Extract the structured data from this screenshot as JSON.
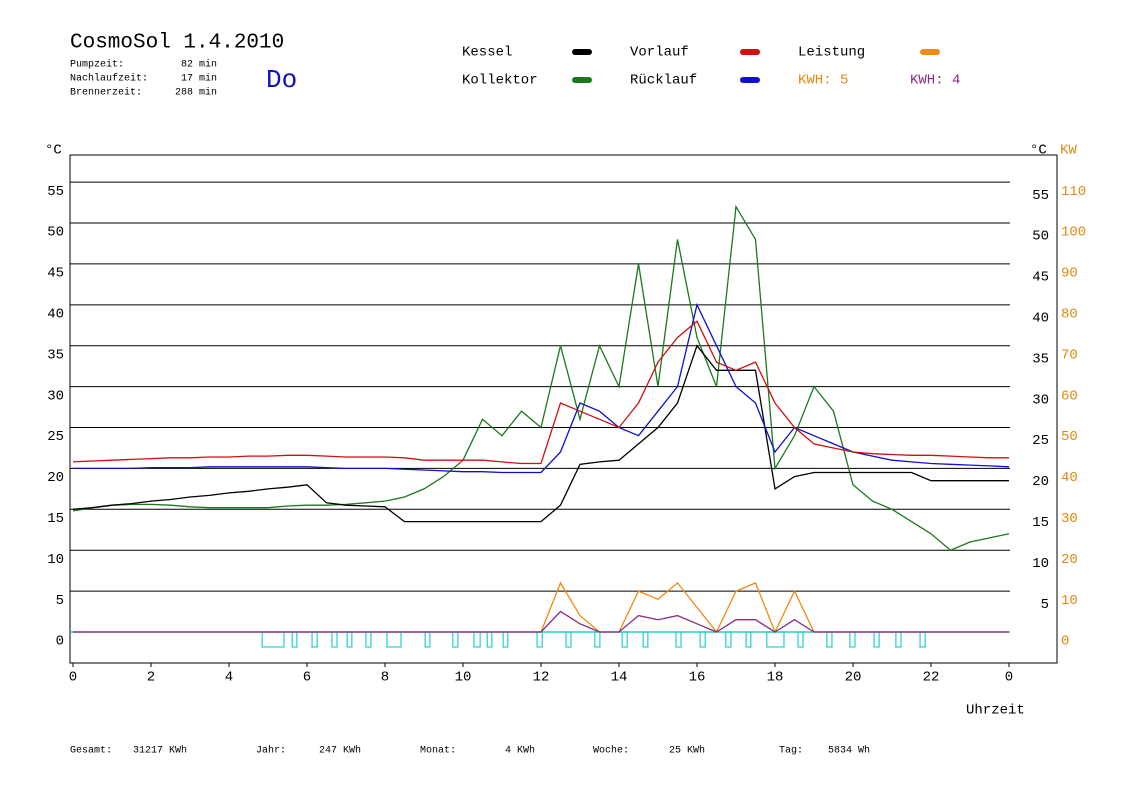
{
  "header": {
    "title": "CosmoSol 1.4.2010",
    "day": "Do",
    "stats": [
      {
        "label": "Pumpzeit:",
        "value": "82 min"
      },
      {
        "label": "Nachlaufzeit:",
        "value": "17 min"
      },
      {
        "label": "Brennerzeit:",
        "value": "288 min"
      }
    ],
    "legend_extra": [
      {
        "text": "KWH: 5",
        "color": "#e08a10"
      },
      {
        "text": "KWH: 4",
        "color": "#8a2a8a"
      }
    ]
  },
  "chart_data": {
    "type": "line",
    "y_unit_left": "°C",
    "y_unit_right": "°C",
    "y2_unit": "KW",
    "xlabel": "Uhrzeit",
    "x": [
      0,
      0.5,
      1,
      1.5,
      2,
      2.5,
      3,
      3.5,
      4,
      4.5,
      5,
      5.5,
      6,
      6.5,
      7,
      7.5,
      8,
      8.5,
      9,
      9.5,
      10,
      10.5,
      11,
      11.5,
      12,
      12.5,
      13,
      13.5,
      14,
      14.5,
      15,
      15.5,
      16,
      16.5,
      17,
      17.5,
      18,
      18.5,
      19,
      19.5,
      20,
      20.5,
      21,
      21.5,
      22,
      22.5,
      23,
      23.5,
      24
    ],
    "xlim": [
      0,
      24
    ],
    "xticks": [
      0,
      2,
      4,
      6,
      8,
      10,
      12,
      14,
      16,
      18,
      20,
      22,
      {
        "value": 24,
        "label": "0"
      }
    ],
    "ylim": [
      -4,
      58
    ],
    "yticks": [
      0,
      5,
      10,
      15,
      20,
      25,
      30,
      35,
      40,
      45,
      50,
      55
    ],
    "yticks_right": [
      5,
      10,
      15,
      20,
      25,
      30,
      35,
      40,
      45,
      50,
      55
    ],
    "y2lim": [
      -8,
      116
    ],
    "y2ticks": [
      0,
      10,
      20,
      30,
      40,
      50,
      60,
      70,
      80,
      90,
      100,
      110
    ],
    "grid": true,
    "series": [
      {
        "name": "Kessel",
        "color": "#000000",
        "values": [
          15,
          15.2,
          15.5,
          15.7,
          16,
          16.2,
          16.5,
          16.7,
          17,
          17.2,
          17.5,
          17.7,
          18,
          15.8,
          15.5,
          15.4,
          15.3,
          13.5,
          13.5,
          13.5,
          13.5,
          13.5,
          13.5,
          13.5,
          13.5,
          15.5,
          20.5,
          20.8,
          21,
          23,
          25,
          28,
          35,
          32,
          32,
          32,
          17.5,
          19,
          19.5,
          19.5,
          19.5,
          19.5,
          19.5,
          19.5,
          18.5,
          18.5,
          18.5,
          18.5,
          18.5
        ]
      },
      {
        "name": "Kollektor",
        "color": "#1a7a1a",
        "values": [
          14.8,
          15.2,
          15.5,
          15.6,
          15.6,
          15.5,
          15.3,
          15.2,
          15.2,
          15.2,
          15.2,
          15.4,
          15.5,
          15.5,
          15.6,
          15.8,
          16,
          16.5,
          17.5,
          19,
          21,
          26,
          24,
          27,
          25,
          35,
          26,
          35,
          30,
          45,
          30,
          48,
          36,
          30,
          52,
          48,
          20,
          24,
          30,
          27,
          18,
          16,
          15,
          13.5,
          12,
          10,
          11,
          11.5,
          12
        ]
      },
      {
        "name": "Vorlauf",
        "color": "#d01010",
        "values": [
          20.8,
          20.9,
          21,
          21.1,
          21.2,
          21.3,
          21.3,
          21.4,
          21.4,
          21.5,
          21.5,
          21.6,
          21.6,
          21.5,
          21.4,
          21.4,
          21.4,
          21.3,
          21.0,
          21.0,
          21.0,
          21.0,
          20.8,
          20.6,
          20.6,
          28,
          27,
          26,
          25,
          28,
          33,
          36,
          38,
          33,
          32,
          33,
          28,
          25,
          23,
          22.5,
          22,
          21.8,
          21.7,
          21.6,
          21.6,
          21.5,
          21.4,
          21.3,
          21.3
        ]
      },
      {
        "name": "Rücklauf",
        "color": "#1010d0",
        "values": [
          20,
          20,
          20,
          20,
          20.1,
          20.1,
          20.1,
          20.2,
          20.2,
          20.2,
          20.2,
          20.2,
          20.2,
          20.1,
          20,
          20,
          20,
          19.9,
          19.8,
          19.7,
          19.6,
          19.6,
          19.5,
          19.5,
          19.5,
          22,
          28,
          27,
          25,
          24,
          27,
          30,
          40,
          35,
          30,
          28,
          22,
          25,
          24,
          23,
          22,
          21.5,
          21,
          20.8,
          20.6,
          20.5,
          20.4,
          20.3,
          20.2
        ]
      },
      {
        "name": "Leistung",
        "color": "#f08a10",
        "axis": "y2",
        "values": [
          0,
          0,
          0,
          0,
          0,
          0,
          0,
          0,
          0,
          0,
          0,
          0,
          0,
          0,
          0,
          0,
          0,
          0,
          0,
          0,
          0,
          0,
          0,
          0,
          0,
          12,
          4,
          0,
          0,
          10,
          8,
          12,
          6,
          0,
          10,
          12,
          0,
          10,
          0,
          0,
          0,
          0,
          0,
          0,
          0,
          0,
          0,
          0,
          0
        ]
      },
      {
        "color": "#8a2a8a",
        "axis": "y2",
        "values": [
          0,
          0,
          0,
          0,
          0,
          0,
          0,
          0,
          0,
          0,
          0,
          0,
          0,
          0,
          0,
          0,
          0,
          0,
          0,
          0,
          0,
          0,
          0,
          0,
          0,
          5,
          2,
          0,
          0,
          4,
          3,
          4,
          2,
          0,
          3,
          3,
          0,
          3,
          0,
          0,
          0,
          0,
          0,
          0,
          0,
          0,
          0,
          0,
          0
        ]
      }
    ],
    "pump_color": "#20d0d0",
    "pump_intervals": [
      [
        4.85,
        5.41
      ],
      [
        5.62,
        5.74
      ],
      [
        6.13,
        6.26
      ],
      [
        6.64,
        6.77
      ],
      [
        7.03,
        7.15
      ],
      [
        7.51,
        7.64
      ],
      [
        8.05,
        8.41
      ],
      [
        9.03,
        9.15
      ],
      [
        9.74,
        9.87
      ],
      [
        10.28,
        10.44
      ],
      [
        10.62,
        10.74
      ],
      [
        11.03,
        11.15
      ],
      [
        11.9,
        12.03
      ],
      [
        12.64,
        12.77
      ],
      [
        13.38,
        13.51
      ],
      [
        14.08,
        14.21
      ],
      [
        14.62,
        14.74
      ],
      [
        15.46,
        15.59
      ],
      [
        16.08,
        16.21
      ],
      [
        16.74,
        16.87
      ],
      [
        17.26,
        17.38
      ],
      [
        17.79,
        18.23
      ],
      [
        18.59,
        18.72
      ],
      [
        19.33,
        19.46
      ],
      [
        19.92,
        20.05
      ],
      [
        20.54,
        20.67
      ],
      [
        21.1,
        21.23
      ],
      [
        21.72,
        21.85
      ]
    ]
  },
  "footer": [
    {
      "label": "Gesamt:",
      "value": "31217 KWh"
    },
    {
      "label": "Jahr:",
      "value": "247 KWh"
    },
    {
      "label": "Monat:",
      "value": "4 KWh"
    },
    {
      "label": "Woche:",
      "value": "25 KWh"
    },
    {
      "label": "Tag:",
      "value": "5834 Wh"
    }
  ]
}
